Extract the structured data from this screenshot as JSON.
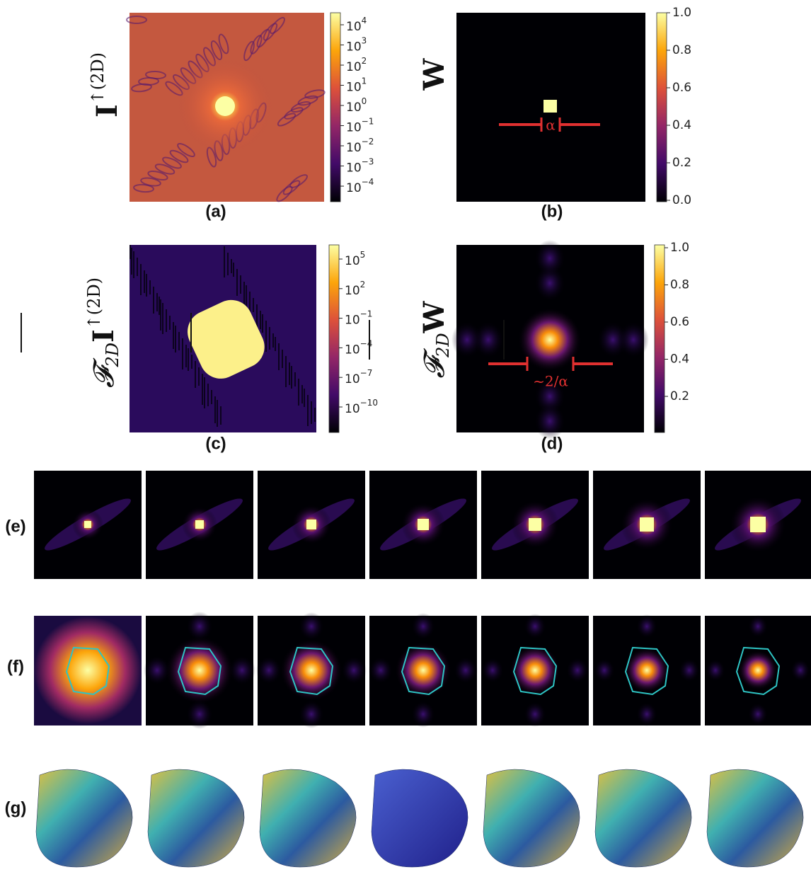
{
  "panels": {
    "a": {
      "label": "(a)",
      "ylabel": {
        "main": "I",
        "sup": "↑(2D)"
      },
      "colorbar_ticks": [
        {
          "base": "10",
          "exp": "4"
        },
        {
          "base": "10",
          "exp": "3"
        },
        {
          "base": "10",
          "exp": "2"
        },
        {
          "base": "10",
          "exp": "1"
        },
        {
          "base": "10",
          "exp": "0"
        },
        {
          "base": "10",
          "exp": "−1"
        },
        {
          "base": "10",
          "exp": "−2"
        },
        {
          "base": "10",
          "exp": "−3"
        },
        {
          "base": "10",
          "exp": "−4"
        }
      ]
    },
    "b": {
      "label": "(b)",
      "ylabel": {
        "main": "W"
      },
      "annotation": "α",
      "colorbar_ticks": [
        "1.0",
        "0.8",
        "0.6",
        "0.4",
        "0.2",
        "0.0"
      ]
    },
    "c": {
      "label": "(c)",
      "ylabel": {
        "op": "𝓕",
        "sub": "2D",
        "main": "I",
        "sup": "↑(2D)"
      },
      "colorbar_ticks": [
        {
          "base": "10",
          "exp": "5"
        },
        {
          "base": "10",
          "exp": "2"
        },
        {
          "base": "10",
          "exp": "−1"
        },
        {
          "base": "10",
          "exp": "−4"
        },
        {
          "base": "10",
          "exp": "−7"
        },
        {
          "base": "10",
          "exp": "−10"
        }
      ]
    },
    "d": {
      "label": "(d)",
      "ylabel": {
        "op": "𝓕",
        "sub": "2D",
        "main": "W"
      },
      "annotation": "~2/α",
      "colorbar_ticks": [
        "1.0",
        "0.8",
        "0.6",
        "0.4",
        "0.2"
      ]
    }
  },
  "rows": {
    "e": {
      "label": "(e)"
    },
    "f": {
      "label": "(f)"
    },
    "g": {
      "label": "(g)"
    }
  }
}
